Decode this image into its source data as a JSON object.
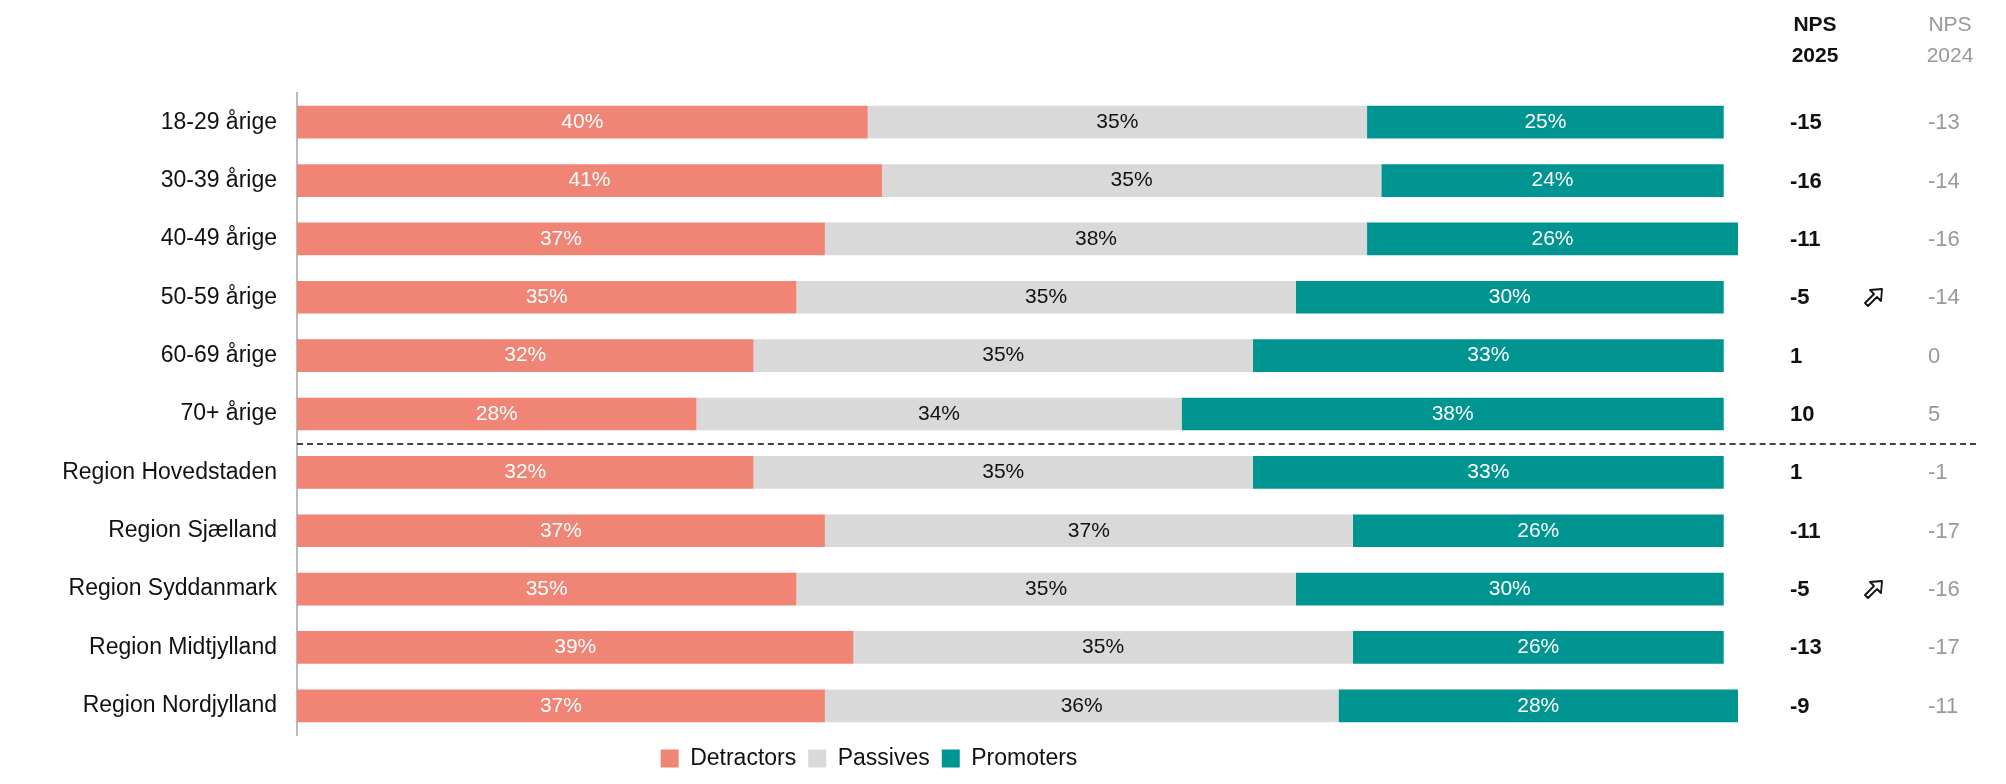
{
  "chart_data": {
    "type": "bar",
    "orientation": "horizontal",
    "stacked": true,
    "legend": "bottom",
    "grid": false,
    "categories": [
      "18-29 årige",
      "30-39 årige",
      "40-49 årige",
      "50-59 årige",
      "60-69 årige",
      "70+ årige",
      "Region Hovedstaden",
      "Region Sjælland",
      "Region Syddanmark",
      "Region Midtjylland",
      "Region Nordjylland"
    ],
    "series": [
      {
        "name": "Detractors",
        "color": "#f08575",
        "values": [
          40,
          41,
          37,
          35,
          32,
          28,
          32,
          37,
          35,
          39,
          37
        ],
        "value_labels": [
          "40%",
          "41%",
          "37%",
          "35%",
          "32%",
          "28%",
          "32%",
          "37%",
          "35%",
          "39%",
          "37%"
        ]
      },
      {
        "name": "Passives",
        "color": "#d9d9d9",
        "values": [
          35,
          35,
          38,
          35,
          35,
          34,
          35,
          37,
          35,
          35,
          36
        ],
        "value_labels": [
          "35%",
          "35%",
          "38%",
          "35%",
          "35%",
          "34%",
          "35%",
          "37%",
          "35%",
          "35%",
          "36%"
        ]
      },
      {
        "name": "Promoters",
        "color": "#009590",
        "values": [
          25,
          24,
          26,
          30,
          33,
          38,
          33,
          26,
          30,
          26,
          28
        ],
        "value_labels": [
          "25%",
          "24%",
          "26%",
          "30%",
          "33%",
          "38%",
          "33%",
          "26%",
          "30%",
          "26%",
          "28%"
        ]
      }
    ],
    "annotations": [
      "NPS 2025",
      "-15",
      "-16",
      "-11",
      "-5",
      "1",
      "10",
      "1",
      "-11",
      "-5",
      "-13",
      "-9",
      "NPS 2024",
      "-13",
      "-14",
      "-16",
      "-14",
      "0",
      "5",
      "-1",
      "-17",
      "-16",
      "-17",
      "-11"
    ]
  }
}
